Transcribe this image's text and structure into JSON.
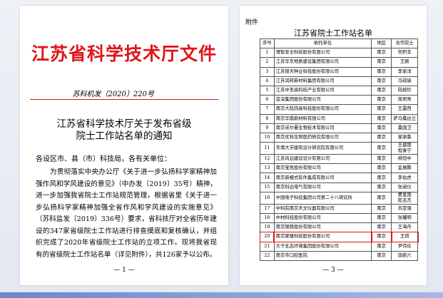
{
  "left_page": {
    "title": "江苏省科学技术厅文件",
    "doc_number": "苏科机发〔2020〕220号",
    "notice_title": [
      "江苏省科学技术厅关于发布省级",
      "院士工作站名单的通知"
    ],
    "salutation": "各设区市、县（市）科技局，各有关单位：",
    "body": "为贯彻落实中央办公厅《关于进一步弘扬科学家精神加强作风和学风建设的意见》（中办发〔2019〕35号）精神，进一步加强我省院士工作站规范管理，根据省里《关于进一步弘扬科学家精神加强全省作风和学风建设的实施意见》（苏科监发〔2019〕336号）要求，省科技厅对全省历年建设的347家省级院士工作站进行排查摸底和复核确认，并组织完成了2020年省级院士工作站的立项工作。现将我省现有的省级院士工作站名单（详见附件），共126家予以公布。",
    "page_number": "— 1 —"
  },
  "right_page": {
    "attachment_label": "附件",
    "table_title": "江苏省院士工作站名单",
    "table": {
      "header": [
        "序号",
        "依托单位",
        "地区",
        "合作院士"
      ],
      "rows": [
        [
          "1",
          "博智安全科技股份有限公司",
          "南京",
          [
            "何积丰"
          ]
        ],
        [
          "2",
          "江苏华东地质建设集团有限公司",
          "南京",
          [
            "王颖"
          ]
        ],
        [
          "3",
          "江苏银天种业科技股份有限公司",
          "南京",
          [
            "李家洋"
          ]
        ],
        [
          "4",
          "江苏润邦新材料集团有限公司",
          "南京",
          [
            "冯叔瑜"
          ]
        ],
        [
          "5",
          "江苏中圣高科技产业有限公司",
          "南京",
          [
            "陆婉珍"
          ]
        ],
        [
          "6",
          "蓝深集团股份有限公司",
          "南京",
          [
            "周君亮"
          ]
        ],
        [
          "7",
          "南京大陆鸽高科技股份有限公司",
          "南京",
          [
            "王震西"
          ]
        ],
        [
          "8",
          "南京华鼎新材料有限公司",
          "南京",
          [
            "萨马桑达兰"
          ]
        ],
        [
          "9",
          "南京诺尔曼生物技术有限公司",
          "南京",
          [
            "桑国卫"
          ]
        ],
        [
          "10",
          "南京优科生物医药研究有限公司",
          "南京",
          [
            "邹承鲁"
          ]
        ],
        [
          "11",
          "东南大学建筑设计研究院有限公司",
          "南京",
          [
            "王建国",
            "程泰宁"
          ]
        ],
        [
          "12",
          "江苏尚远建设设计有限公司",
          "南京",
          [
            "柳冠中"
          ]
        ],
        [
          "13",
          "南京宝色股份有限公司",
          "南京",
          [
            "金展鹏"
          ]
        ],
        [
          "14",
          "南京新模式软件集成有限公司",
          "南京",
          [
            "李伯虎"
          ]
        ],
        [
          "15",
          "南京科远电气有限公司",
          "南京",
          [
            "张淑仪"
          ]
        ],
        [
          "16",
          "中国电子科技集团公司第二十八研究所",
          "南京",
          [
            "费爱国",
            "陈志杰"
          ]
        ],
        [
          "17",
          "中科院南京天文仪器有限公司",
          "南京",
          [
            "苏定强"
          ]
        ],
        [
          "18",
          "中材科技股份有限公司",
          "南京",
          [
            "张耀明"
          ]
        ],
        [
          "19",
          "南京钢铁股份有限公司",
          "南京",
          [
            "王海舟"
          ]
        ],
        [
          "20",
          "南京聚隆科技股份有限公司",
          "南京",
          [
            "王琪"
          ]
        ],
        [
          "21",
          "大千生态环境集团股份有限公司",
          "南京",
          [
            "尹伟伦"
          ]
        ],
        [
          "22",
          "南京市口腔医院",
          "南京",
          [
            "邱蔚六"
          ]
        ]
      ]
    },
    "page_number": "— 3 —"
  }
}
